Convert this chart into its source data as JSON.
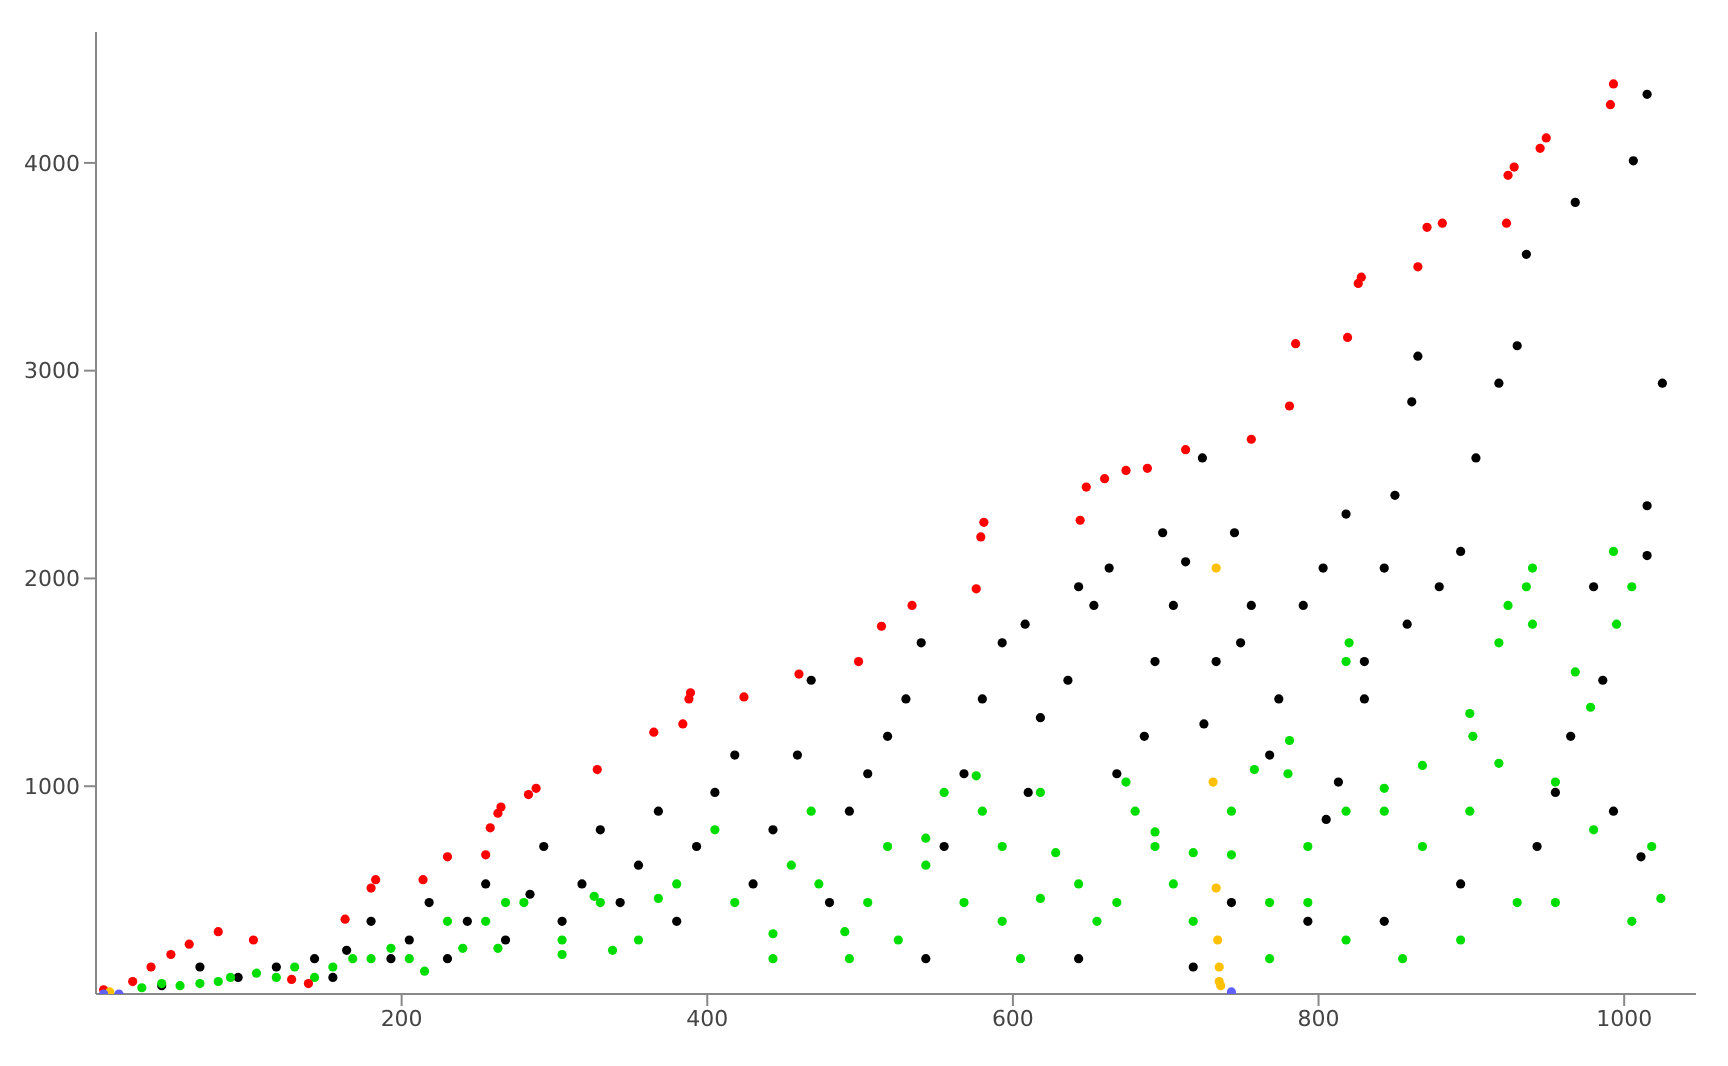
{
  "chart_data": {
    "type": "scatter",
    "marker": "circle",
    "xlim": [
      0,
      1047
    ],
    "ylim": [
      0,
      4630
    ],
    "xticks": [
      200,
      400,
      600,
      800,
      1000
    ],
    "yticks": [
      1000,
      2000,
      3000,
      4000
    ],
    "series": [
      {
        "color": "#000000",
        "x": [
          1015,
          1006,
          968,
          1025,
          1015,
          1015,
          1011,
          980,
          986,
          965,
          955,
          936,
          930,
          918,
          903,
          893,
          879,
          858,
          865,
          861,
          850,
          843,
          830,
          830,
          813,
          805,
          818,
          803,
          790,
          774,
          768,
          756,
          749,
          745,
          733,
          725,
          724,
          713,
          705,
          698,
          693,
          686,
          668,
          663,
          653,
          643,
          636,
          618,
          610,
          608,
          593,
          580,
          568,
          555,
          540,
          530,
          518,
          505,
          493,
          480,
          468,
          459,
          443,
          430,
          418,
          405,
          393,
          380,
          368,
          355,
          343,
          330,
          318,
          305,
          293,
          284,
          268,
          255,
          243,
          230,
          218,
          205,
          193,
          180,
          164,
          155,
          143,
          118,
          93,
          68,
          43,
          543,
          643,
          718,
          793,
          843,
          893,
          943,
          993,
          743
        ],
        "values": [
          4330,
          4010,
          3810,
          2940,
          2350,
          2110,
          660,
          1960,
          1510,
          1240,
          970,
          3560,
          3120,
          2940,
          2580,
          2130,
          1960,
          1780,
          3070,
          2850,
          2400,
          2050,
          1600,
          1420,
          1020,
          840,
          2310,
          2050,
          1870,
          1420,
          1150,
          1870,
          1690,
          2220,
          1600,
          1300,
          2580,
          2080,
          1870,
          2220,
          1600,
          1240,
          1060,
          2050,
          1870,
          1960,
          1510,
          1330,
          970,
          1780,
          1690,
          1420,
          1060,
          710,
          1690,
          1420,
          1240,
          1060,
          880,
          440,
          1510,
          1150,
          790,
          530,
          1150,
          970,
          710,
          350,
          880,
          620,
          440,
          790,
          530,
          350,
          710,
          480,
          260,
          530,
          350,
          170,
          440,
          260,
          170,
          350,
          210,
          80,
          170,
          130,
          80,
          130,
          40,
          170,
          170,
          130,
          350,
          350,
          530,
          710,
          880,
          440
        ]
      },
      {
        "color": "#00dd00",
        "x": [
          1005,
          995,
          968,
          936,
          940,
          918,
          899,
          893,
          868,
          855,
          843,
          818,
          793,
          780,
          768,
          743,
          718,
          705,
          693,
          680,
          674,
          655,
          643,
          618,
          605,
          593,
          580,
          568,
          555,
          543,
          518,
          505,
          493,
          468,
          455,
          443,
          405,
          380,
          355,
          330,
          305,
          280,
          255,
          230,
          205,
          180,
          155,
          130,
          105,
          80,
          55,
          30,
          955,
          980,
          1018,
          918,
          818
        ],
        "values": [
          1960,
          1780,
          1550,
          1960,
          2050,
          1690,
          880,
          260,
          710,
          170,
          880,
          260,
          710,
          1060,
          170,
          880,
          350,
          530,
          710,
          880,
          1020,
          350,
          530,
          970,
          170,
          710,
          880,
          440,
          970,
          620,
          710,
          440,
          170,
          880,
          620,
          170,
          790,
          530,
          260,
          440,
          260,
          440,
          350,
          350,
          170,
          170,
          130,
          130,
          100,
          60,
          40,
          30,
          440,
          790,
          710,
          1110,
          880
        ]
      },
      {
        "color": "#00dd00",
        "x": [
          718,
          743,
          758,
          781,
          818,
          820,
          843,
          868,
          899,
          901,
          924,
          940,
          955,
          978,
          993,
          1005,
          1024,
          576,
          618,
          668,
          693,
          628,
          593,
          543,
          525,
          490,
          473,
          443,
          418,
          368,
          338,
          326,
          305,
          268,
          263,
          240,
          215,
          193,
          168,
          143,
          118,
          88,
          68,
          43,
          768,
          793,
          930
        ],
        "values": [
          680,
          670,
          1080,
          1220,
          1600,
          1690,
          990,
          1100,
          1350,
          1240,
          1870,
          1780,
          1020,
          1380,
          2130,
          350,
          460,
          1050,
          460,
          440,
          780,
          680,
          350,
          750,
          260,
          300,
          530,
          290,
          440,
          460,
          210,
          470,
          190,
          440,
          220,
          220,
          110,
          220,
          170,
          80,
          80,
          80,
          50,
          50,
          440,
          440,
          440
        ]
      },
      {
        "color": "#ff0000",
        "x": [
          5,
          24,
          36,
          49,
          61,
          80,
          103,
          128,
          139,
          163,
          180,
          183,
          214,
          230,
          255,
          258,
          263,
          265,
          283,
          288,
          328,
          365,
          384,
          388,
          389,
          424,
          460,
          499,
          514,
          534,
          576,
          579,
          581,
          644,
          648,
          660,
          674,
          688,
          713,
          756,
          781,
          785,
          819,
          826,
          828,
          865,
          871,
          881,
          923,
          924,
          928,
          945,
          949,
          991,
          993
        ],
        "values": [
          20,
          60,
          130,
          190,
          240,
          300,
          260,
          70,
          50,
          360,
          510,
          550,
          550,
          660,
          670,
          800,
          870,
          900,
          960,
          990,
          1080,
          1260,
          1300,
          1420,
          1450,
          1430,
          1540,
          1600,
          1770,
          1870,
          1950,
          2200,
          2270,
          2280,
          2440,
          2480,
          2520,
          2530,
          2620,
          2670,
          2830,
          3130,
          3160,
          3420,
          3450,
          3500,
          3690,
          3710,
          3710,
          3940,
          3980,
          4070,
          4120,
          4280,
          4380
        ]
      },
      {
        "color": "#ffc000",
        "x": [
          733,
          731,
          733,
          734,
          735,
          735,
          736,
          9
        ],
        "values": [
          2050,
          1020,
          510,
          260,
          130,
          60,
          40,
          10
        ]
      },
      {
        "color": "#6060ff",
        "x": [
          743,
          5,
          15
        ],
        "values": [
          10,
          0,
          0
        ]
      }
    ]
  }
}
